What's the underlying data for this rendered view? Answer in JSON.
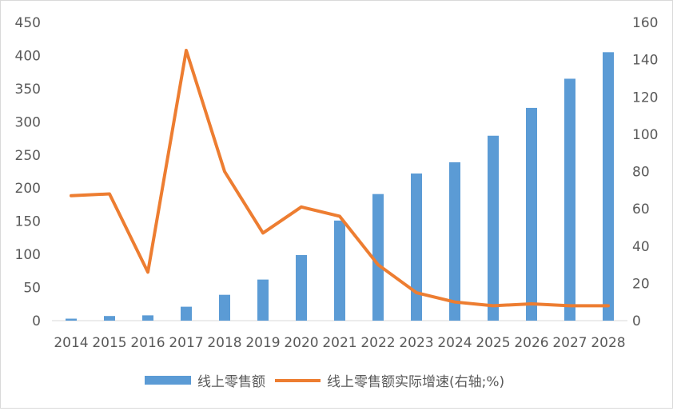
{
  "chart_data": {
    "type": "bar",
    "categories": [
      "2014",
      "2015",
      "2016",
      "2017",
      "2018",
      "2019",
      "2020",
      "2021",
      "2022",
      "2023",
      "2024",
      "2025",
      "2026",
      "2027",
      "2028"
    ],
    "series": [
      {
        "name": "线上零售额",
        "type": "bar",
        "axis": "left",
        "color": "#5B9BD5",
        "values": [
          3,
          7,
          8,
          21,
          39,
          62,
          99,
          151,
          191,
          222,
          239,
          279,
          321,
          365,
          405
        ]
      },
      {
        "name": "线上零售额实际增速(右轴;%)",
        "type": "line",
        "axis": "right",
        "color": "#ED7D31",
        "values": [
          67,
          68,
          26,
          145,
          80,
          47,
          61,
          56,
          30,
          15,
          10,
          8,
          9,
          8,
          8
        ]
      }
    ],
    "left_axis": {
      "ylim": [
        0,
        450
      ],
      "ticks": [
        "0",
        "50",
        "100",
        "150",
        "200",
        "250",
        "300",
        "350",
        "400",
        "450"
      ]
    },
    "right_axis": {
      "ylim": [
        0,
        160
      ],
      "ticks": [
        "0",
        "20",
        "40",
        "60",
        "80",
        "100",
        "120",
        "140",
        "160"
      ]
    },
    "grid": false,
    "legend": {
      "placement": "bottom",
      "items": [
        "线上零售额",
        "线上零售额实际增速(右轴;%)"
      ]
    }
  }
}
